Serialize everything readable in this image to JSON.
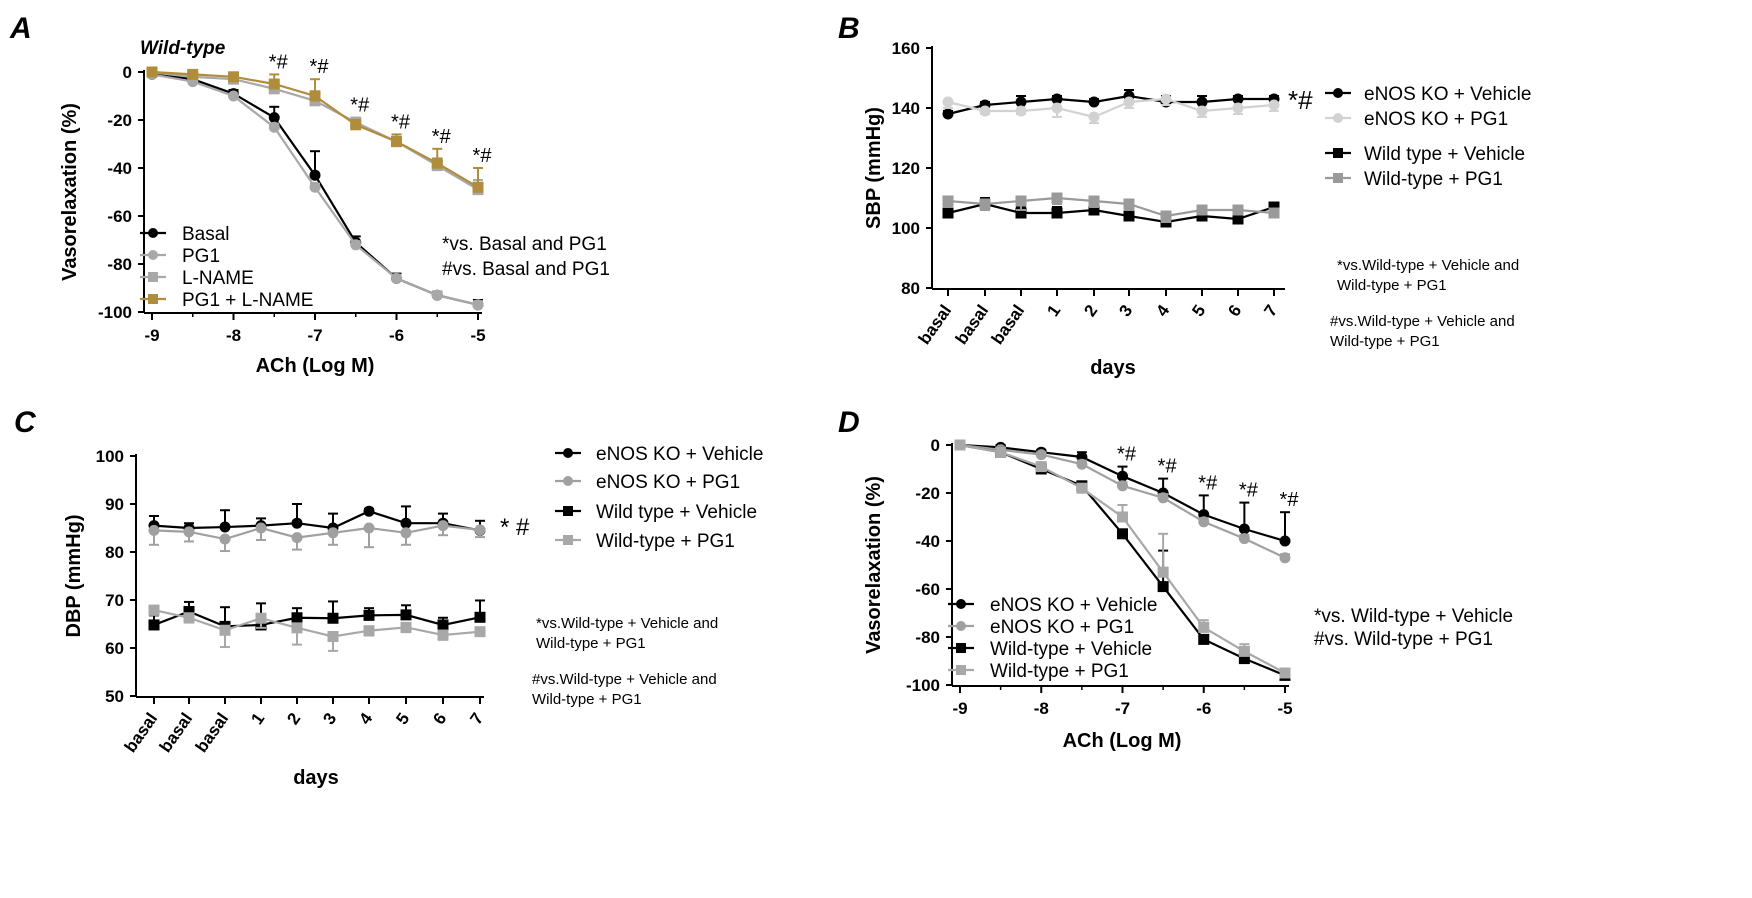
{
  "chart_data": [
    {
      "id": "A",
      "type": "line",
      "panel_label": "A",
      "subtitle": "Wild-type",
      "xlabel": "ACh (Log M)",
      "ylabel": "Vasorelaxation (%)",
      "xlim": [
        -9,
        -5
      ],
      "ylim": [
        -100,
        0
      ],
      "x_ticks": [
        -9,
        -8,
        -7,
        -6,
        -5
      ],
      "y_ticks": [
        0,
        -20,
        -40,
        -60,
        -80,
        -100
      ],
      "x": [
        -9,
        -8.5,
        -8,
        -7.5,
        -7,
        -6.5,
        -6,
        -5.5,
        -5
      ],
      "series": [
        {
          "name": "Basal",
          "color": "#000000",
          "marker": "circle",
          "values": [
            -1,
            -3,
            -9,
            -19,
            -43,
            -71,
            -86,
            -93,
            -97
          ],
          "errors": [
            1,
            1,
            1.5,
            4.5,
            10,
            2.5,
            2,
            1.5,
            2
          ]
        },
        {
          "name": "PG1",
          "color": "#a8a8a8",
          "marker": "circle",
          "values": [
            -1,
            -4,
            -10,
            -23,
            -48,
            -72,
            -86,
            -93,
            -97
          ],
          "errors": [
            1,
            1,
            1,
            1.5,
            1.5,
            1.5,
            1.5,
            1.5,
            1.5
          ]
        },
        {
          "name": "L-NAME",
          "color": "#a8a8a8",
          "marker": "square",
          "values": [
            0,
            -2,
            -3,
            -7,
            -12,
            -21,
            -29,
            -39,
            -49
          ],
          "errors": [
            1,
            1,
            1,
            3,
            4,
            2,
            2,
            3,
            4
          ]
        },
        {
          "name": "PG1 + L-NAME",
          "color": "#b08d3a",
          "marker": "square",
          "values": [
            0,
            -1,
            -2,
            -5,
            -10,
            -22,
            -29,
            -38,
            -48
          ],
          "errors": [
            1,
            1,
            1,
            4,
            7,
            2,
            3,
            6,
            8
          ]
        }
      ],
      "significance": [
        {
          "x": -7.5,
          "label": "*#"
        },
        {
          "x": -7,
          "label": "*#"
        },
        {
          "x": -6.5,
          "label": "*#"
        },
        {
          "x": -6,
          "label": "*#"
        },
        {
          "x": -5.5,
          "label": "*#"
        },
        {
          "x": -5,
          "label": "*#"
        }
      ],
      "notes": [
        "*vs. Basal and PG1",
        "#vs. Basal and PG1"
      ]
    },
    {
      "id": "B",
      "type": "line",
      "panel_label": "B",
      "xlabel": "days",
      "ylabel": "SBP (mmHg)",
      "ylim": [
        80,
        160
      ],
      "y_ticks": [
        80,
        100,
        120,
        140,
        160
      ],
      "categories": [
        "basal",
        "basal",
        "basal",
        "1",
        "2",
        "3",
        "4",
        "5",
        "6",
        "7"
      ],
      "series": [
        {
          "name": "eNOS KO + Vehicle",
          "color": "#000000",
          "marker": "circle",
          "values": [
            138,
            141,
            142,
            143,
            142,
            144,
            142,
            142,
            143,
            143
          ],
          "errors": [
            1,
            1,
            2,
            1,
            1,
            2,
            2,
            2,
            1,
            1
          ]
        },
        {
          "name": "eNOS KO + PG1",
          "color": "#d2d2d2",
          "marker": "circle",
          "values": [
            142,
            139,
            139,
            140,
            137,
            142,
            143,
            139,
            140,
            141
          ],
          "errors": [
            2,
            1,
            1,
            3,
            2,
            2,
            2,
            2,
            2,
            2
          ]
        },
        {
          "name": "Wild type + Vehicle",
          "color": "#000000",
          "marker": "square",
          "values": [
            105,
            108,
            105,
            105,
            106,
            104,
            102,
            104,
            103,
            107
          ],
          "errors": [
            2,
            2,
            2,
            2,
            2,
            3,
            2,
            2,
            2,
            1
          ]
        },
        {
          "name": "Wild-type + PG1",
          "color": "#9a9a9a",
          "marker": "square",
          "values": [
            109,
            108,
            109,
            110,
            109,
            108,
            104,
            106,
            106,
            105
          ],
          "errors": [
            2,
            2,
            3,
            2,
            2,
            2,
            2,
            1,
            1,
            1
          ]
        }
      ],
      "significance_label": "*#",
      "notes": [
        "*vs.Wild-type + Vehicle and",
        "Wild-type + PG1",
        "#vs.Wild-type + Vehicle and",
        "Wild-type + PG1"
      ]
    },
    {
      "id": "C",
      "type": "line",
      "panel_label": "C",
      "xlabel": "days",
      "ylabel": "DBP (mmHg)",
      "ylim": [
        50,
        100
      ],
      "y_ticks": [
        50,
        60,
        70,
        80,
        90,
        100
      ],
      "categories": [
        "basal",
        "basal",
        "basal",
        "1",
        "2",
        "3",
        "4",
        "5",
        "6",
        "7"
      ],
      "series": [
        {
          "name": "eNOS KO + Vehicle",
          "color": "#000000",
          "marker": "circle",
          "values": [
            85.5,
            85,
            85.2,
            85.5,
            86,
            85,
            88.5,
            86,
            86,
            84.5
          ],
          "errors": [
            2,
            1,
            3.5,
            1.5,
            4,
            3,
            0.5,
            3.5,
            2,
            2
          ]
        },
        {
          "name": "eNOS KO + PG1",
          "color": "#a0a0a0",
          "marker": "circle",
          "values": [
            84.5,
            84.2,
            82.7,
            85,
            83,
            84,
            85,
            84,
            85.5,
            84.6
          ],
          "errors": [
            3,
            2,
            2.5,
            2.5,
            2.5,
            2.5,
            4,
            2.5,
            2,
            1.5
          ]
        },
        {
          "name": "Wild type + Vehicle",
          "color": "#000000",
          "marker": "square",
          "values": [
            64.8,
            67.6,
            64.5,
            64.8,
            66.3,
            66.2,
            66.8,
            66.9,
            64.8,
            66.4
          ],
          "errors": [
            2,
            2,
            4,
            4.5,
            2,
            3.5,
            1.5,
            2,
            1.5,
            3.5
          ]
        },
        {
          "name": "Wild-type + PG1",
          "color": "#a8a8a8",
          "marker": "square",
          "values": [
            67.9,
            66.3,
            63.7,
            66.2,
            64.2,
            62.4,
            63.6,
            64.3,
            62.7,
            63.4
          ],
          "errors": [
            1,
            1,
            3.5,
            2,
            3.5,
            3,
            1,
            1,
            1,
            0.5
          ]
        }
      ],
      "significance_label": "* #",
      "notes": [
        "*vs.Wild-type + Vehicle and",
        "Wild-type + PG1",
        "#vs.Wild-type + Vehicle and",
        "Wild-type + PG1"
      ]
    },
    {
      "id": "D",
      "type": "line",
      "panel_label": "D",
      "xlabel": "ACh (Log M)",
      "ylabel": "Vasorelaxation (%)",
      "xlim": [
        -9,
        -5
      ],
      "ylim": [
        -100,
        0
      ],
      "x_ticks": [
        -9,
        -8,
        -7,
        -6,
        -5
      ],
      "y_ticks": [
        0,
        -20,
        -40,
        -60,
        -80,
        -100
      ],
      "x": [
        -9,
        -8.5,
        -8,
        -7.5,
        -7,
        -6.5,
        -6,
        -5.5,
        -5
      ],
      "series": [
        {
          "name": "eNOS KO + Vehicle",
          "color": "#000000",
          "marker": "circle",
          "values": [
            0,
            -1,
            -3,
            -5,
            -13,
            -20,
            -29,
            -35,
            -40
          ],
          "errors": [
            0.5,
            1,
            1,
            2,
            4,
            6,
            8,
            11,
            12
          ]
        },
        {
          "name": "eNOS KO + PG1",
          "color": "#a0a0a0",
          "marker": "circle",
          "values": [
            0,
            -2,
            -4,
            -8,
            -17,
            -22,
            -32,
            -39,
            -47
          ],
          "errors": [
            0.5,
            1,
            1,
            1.5,
            1.5,
            1.5,
            1.5,
            1.5,
            1.5
          ]
        },
        {
          "name": "Wild-type + Vehicle",
          "color": "#000000",
          "marker": "square",
          "values": [
            0,
            -3,
            -10,
            -17,
            -37,
            -59,
            -81,
            -89,
            -96
          ],
          "errors": [
            0.5,
            1,
            1,
            1.5,
            1.5,
            15,
            1.5,
            1.5,
            1
          ]
        },
        {
          "name": "Wild-type + PG1",
          "color": "#a8a8a8",
          "marker": "square",
          "values": [
            0,
            -3,
            -9,
            -18,
            -30,
            -53,
            -76,
            -86,
            -95
          ],
          "errors": [
            0.5,
            1,
            1,
            1.5,
            5,
            16,
            3,
            3,
            1
          ]
        }
      ],
      "significance": [
        {
          "x": -7,
          "label": "*#"
        },
        {
          "x": -6.5,
          "label": "*#"
        },
        {
          "x": -6,
          "label": "*#"
        },
        {
          "x": -5.5,
          "label": "*#"
        },
        {
          "x": -5,
          "label": "*#"
        }
      ],
      "notes": [
        "*vs. Wild-type + Vehicle",
        "#vs. Wild-type + PG1"
      ]
    }
  ]
}
